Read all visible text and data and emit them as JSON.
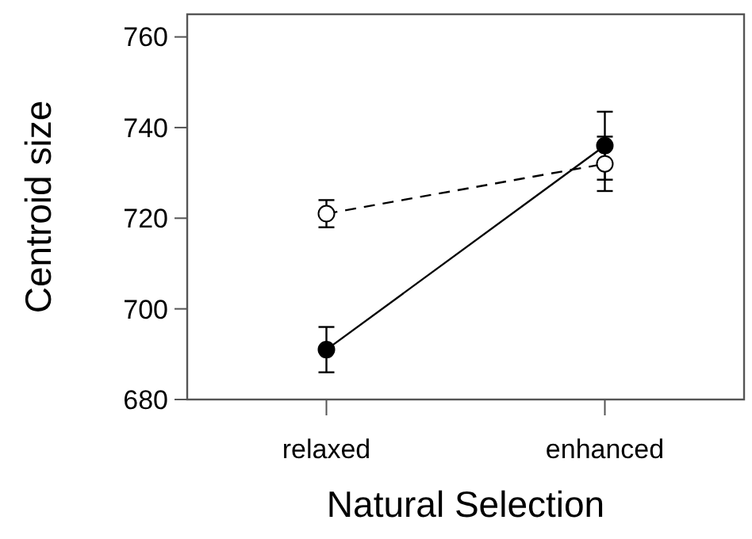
{
  "chart_data": {
    "type": "line",
    "xlabel": "Natural Selection",
    "ylabel": "Centroid size",
    "categories": [
      "relaxed",
      "enhanced"
    ],
    "ylim": [
      680,
      765
    ],
    "yticks": [
      680,
      700,
      720,
      740,
      760
    ],
    "series": [
      {
        "color": "#000000",
        "values": [
          691,
          736
        ],
        "errors": [
          5,
          7.5
        ],
        "marker": "circle",
        "line_style": "solid"
      },
      {
        "color": "#000000",
        "values": [
          721,
          732
        ],
        "errors": [
          3,
          6
        ],
        "marker": "circle",
        "line_style": "dashed"
      }
    ]
  }
}
